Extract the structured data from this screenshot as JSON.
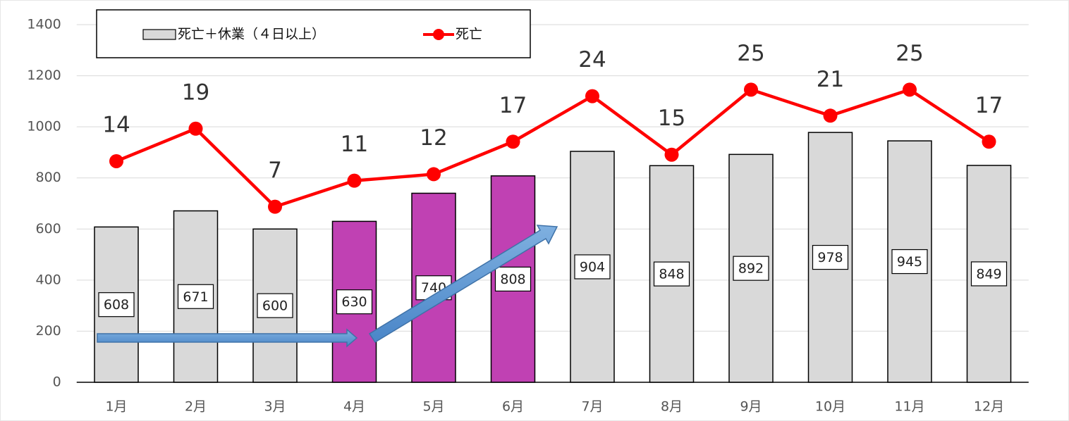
{
  "chart_data": {
    "type": "bar_line",
    "categories": [
      "1月",
      "2月",
      "3月",
      "4月",
      "5月",
      "6月",
      "7月",
      "8月",
      "9月",
      "10月",
      "11月",
      "12月"
    ],
    "series": [
      {
        "name": "死亡＋休業（４日以上）",
        "type": "bar",
        "color": "#d9d9d9",
        "colors": [
          "#d9d9d9",
          "#d9d9d9",
          "#d9d9d9",
          "#c041b3",
          "#c041b3",
          "#c041b3",
          "#d9d9d9",
          "#d9d9d9",
          "#d9d9d9",
          "#d9d9d9",
          "#d9d9d9",
          "#d9d9d9"
        ],
        "values": [
          608,
          671,
          600,
          630,
          740,
          808,
          904,
          848,
          892,
          978,
          945,
          849
        ]
      },
      {
        "name": "死亡",
        "type": "line",
        "axis": "y2",
        "color": "#ff0000",
        "values": [
          14,
          19,
          7,
          11,
          12,
          17,
          24,
          15,
          25,
          21,
          25,
          17
        ]
      }
    ],
    "ylim": [
      0,
      1400
    ],
    "yticks": [
      0,
      200,
      400,
      600,
      800,
      1000,
      1200,
      1400
    ],
    "y2lim": [
      -20,
      35
    ],
    "grid": true,
    "legend": "top"
  }
}
